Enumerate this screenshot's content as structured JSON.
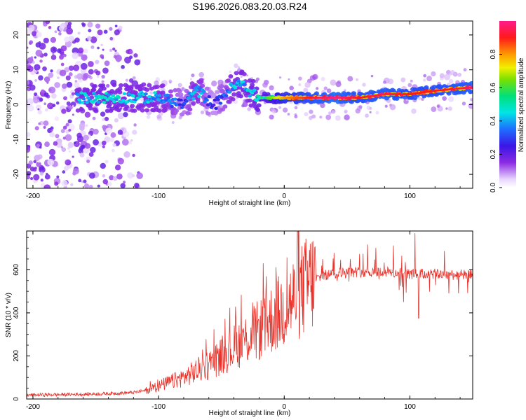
{
  "title": "S196.2026.083.20.03.R24",
  "chart_data": [
    {
      "type": "heatmap",
      "title": "S196.2026.083.20.03.R24",
      "xlabel": "Height of straight line (km)",
      "ylabel": "Frequency (Hz)",
      "xlim": [
        -205,
        150
      ],
      "ylim": [
        -24,
        24
      ],
      "xticks": [
        -200,
        -100,
        0,
        100
      ],
      "yticks": [
        -20,
        -10,
        0,
        10,
        20
      ],
      "colorbar": {
        "label": "Normalized spectral amplitude",
        "range": [
          0,
          1
        ],
        "ticks": [
          0.0,
          0.2,
          0.4,
          0.6,
          0.8
        ],
        "colormap": "rainbow (purple-blue-cyan-green-yellow-red-magenta)"
      },
      "ridge": {
        "x": [
          -165,
          -140,
          -120,
          -100,
          -90,
          -80,
          -75,
          -70,
          -65,
          -60,
          -55,
          -50,
          -45,
          -40,
          -35,
          -30,
          -25,
          -20,
          -10,
          0,
          20,
          40,
          60,
          80,
          100,
          120,
          150
        ],
        "freq_hz": [
          2,
          2,
          2,
          2,
          1,
          0,
          2,
          4,
          3,
          1,
          0,
          2,
          4,
          5,
          6,
          5,
          3,
          2,
          2,
          2,
          2,
          2,
          2,
          3,
          3,
          4,
          5
        ],
        "amplitude": [
          0.45,
          0.5,
          0.45,
          0.45,
          0.4,
          0.3,
          0.4,
          0.45,
          0.4,
          0.3,
          0.25,
          0.35,
          0.4,
          0.45,
          0.5,
          0.45,
          0.5,
          0.55,
          0.65,
          0.8,
          0.9,
          1.0,
          0.9,
          0.95,
          0.9,
          0.9,
          0.95
        ]
      },
      "noise_region_x": [
        -205,
        -115
      ]
    },
    {
      "type": "line",
      "xlabel": "Height of straight line (km)",
      "ylabel": "SNR (10 * v/v)",
      "xlim": [
        -205,
        150
      ],
      "ylim": [
        0,
        780
      ],
      "xticks": [
        -200,
        -100,
        0,
        100
      ],
      "yticks": [
        0,
        200,
        400,
        600
      ],
      "color": "#e8332b",
      "envelope": {
        "x": [
          -205,
          -180,
          -160,
          -140,
          -120,
          -110,
          -100,
          -90,
          -80,
          -70,
          -60,
          -50,
          -40,
          -30,
          -20,
          -10,
          0,
          10,
          20,
          30,
          40,
          60,
          80,
          100,
          120,
          150
        ],
        "y": [
          18,
          20,
          22,
          25,
          30,
          40,
          60,
          80,
          100,
          130,
          160,
          200,
          240,
          280,
          320,
          370,
          420,
          480,
          540,
          570,
          585,
          590,
          590,
          580,
          580,
          575
        ]
      },
      "notable_points": [
        {
          "x": 104,
          "y": 770
        },
        {
          "x": 107,
          "y": 375
        },
        {
          "x": 95,
          "y": 450
        }
      ]
    }
  ]
}
